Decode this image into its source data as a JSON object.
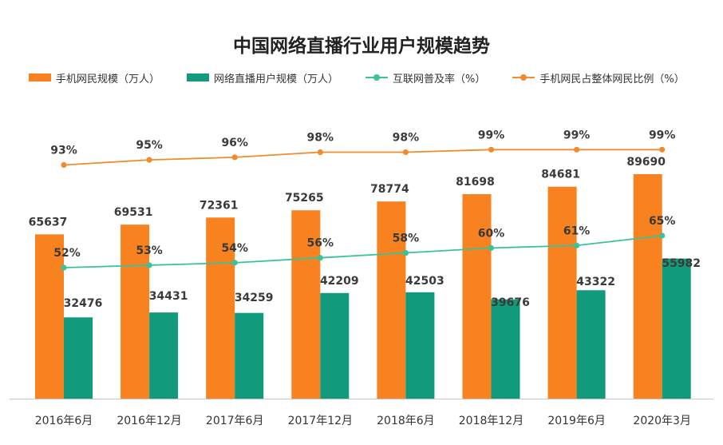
{
  "chart_data": {
    "type": "bar",
    "title": "中国网络直播行业用户规模趋势",
    "categories": [
      "2016年6月",
      "2016年12月",
      "2017年6月",
      "2017年12月",
      "2018年6月",
      "2018年12月",
      "2019年6月",
      "2020年3月"
    ],
    "series": [
      {
        "name": "手机网民规模（万人）",
        "type": "bar",
        "color": "#f7821f",
        "values": [
          65637,
          69531,
          72361,
          75265,
          78774,
          81698,
          84681,
          89690
        ],
        "labels": [
          "65637",
          "69531",
          "72361",
          "75265",
          "78774",
          "81698",
          "84681",
          "89690"
        ]
      },
      {
        "name": "网络直播用户规模（万人）",
        "type": "bar",
        "color": "#119a7b",
        "values": [
          32476,
          34431,
          34259,
          42209,
          42503,
          39676,
          43322,
          55982
        ],
        "labels": [
          "32476",
          "34431",
          "34259",
          "42209",
          "42503",
          "39676",
          "43322",
          "55982"
        ]
      },
      {
        "name": "互联网普及率（%）",
        "type": "line",
        "color": "#3cc29a",
        "values": [
          52,
          53,
          54,
          56,
          58,
          60,
          61,
          65
        ],
        "labels": [
          "52%",
          "53%",
          "54%",
          "56%",
          "58%",
          "60%",
          "61%",
          "65%"
        ]
      },
      {
        "name": "手机网民占整体网民比例（%）",
        "type": "line",
        "color": "#f08c2e",
        "values": [
          93,
          95,
          96,
          98,
          98,
          99,
          99,
          99
        ],
        "labels": [
          "93%",
          "95%",
          "96%",
          "98%",
          "98%",
          "99%",
          "99%",
          "99%"
        ]
      }
    ],
    "legend_position": "top",
    "grid": false
  }
}
